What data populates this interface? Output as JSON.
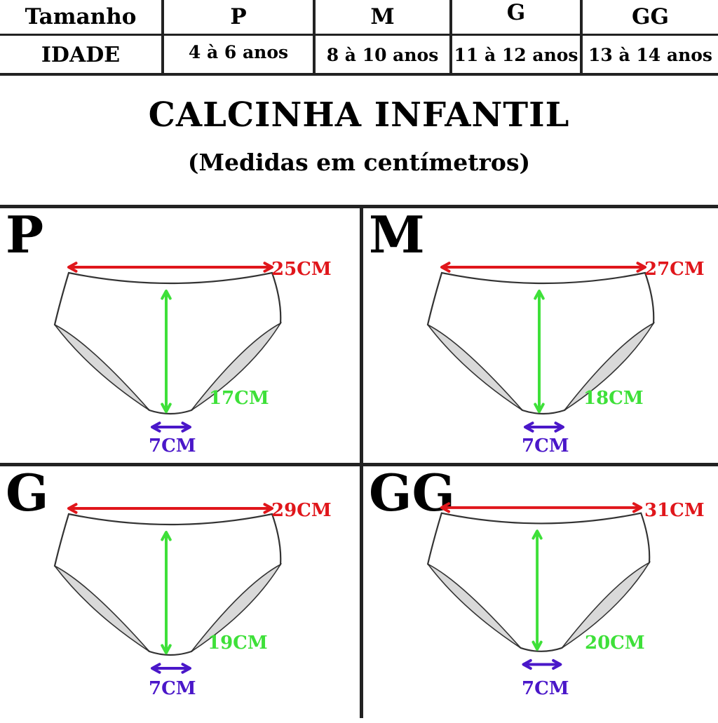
{
  "size_table": {
    "header_label": "Tamanho",
    "age_label": "IDADE",
    "sizes": [
      "P",
      "M",
      "G",
      "GG"
    ],
    "ages": [
      "4 à 6 anos",
      "8 à 10 anos",
      "11 à 12 anos",
      "13 à 14 anos"
    ]
  },
  "title": "CALCINHA INFANTIL",
  "subtitle": "(Medidas em centímetros)",
  "panels": [
    {
      "size": "P",
      "waist": "25CM",
      "height": "17CM",
      "crotch": "7CM"
    },
    {
      "size": "M",
      "waist": "27CM",
      "height": "18CM",
      "crotch": "7CM"
    },
    {
      "size": "G",
      "waist": "29CM",
      "height": "19CM",
      "crotch": "7CM"
    },
    {
      "size": "GG",
      "waist": "31CM",
      "height": "20CM",
      "crotch": "7CM"
    }
  ],
  "colors": {
    "waist_arrow": "#e0161b",
    "height_arrow": "#3ee039",
    "crotch_arrow": "#4a17c9",
    "outline": "#333333"
  }
}
